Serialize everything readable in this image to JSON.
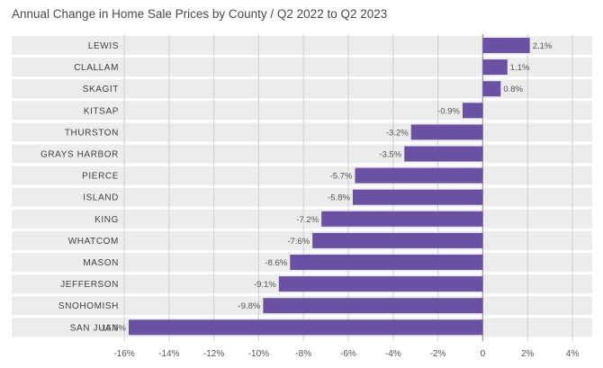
{
  "chart_data": {
    "type": "bar",
    "orientation": "horizontal",
    "title": "Annual Change in Home Sale Prices by County   /   Q2 2022 to Q2 2023",
    "xlabel": "",
    "ylabel": "",
    "categories": [
      "LEWIS",
      "CLALLAM",
      "SKAGIT",
      "KITSAP",
      "THURSTON",
      "GRAYS HARBOR",
      "PIERCE",
      "ISLAND",
      "KING",
      "WHATCOM",
      "MASON",
      "JEFFERSON",
      "SNOHOMISH",
      "SAN JUAN"
    ],
    "values": [
      2.1,
      1.1,
      0.8,
      -0.9,
      -3.2,
      -3.5,
      -5.7,
      -5.8,
      -7.2,
      -7.6,
      -8.6,
      -9.1,
      -9.8,
      -15.8
    ],
    "data_labels": [
      "2.1%",
      "1.1%",
      "0.8%",
      "-0.9%",
      "-3.2%",
      "-3.5%",
      "-5.7%",
      "-5.8%",
      "-7.2%",
      "-7.6%",
      "-8.6%",
      "-9.1%",
      "-9.8%",
      "-15.8%"
    ],
    "xlim": [
      -16,
      4
    ],
    "xticks": [
      -16,
      -14,
      -12,
      -10,
      -8,
      -6,
      -4,
      -2,
      0,
      2,
      4
    ],
    "xtick_labels": [
      "-16%",
      "-14%",
      "-12%",
      "-10%",
      "-8%",
      "-6%",
      "-4%",
      "-2%",
      "0",
      "2%",
      "4%"
    ],
    "grid": true,
    "colors": {
      "bar": "#6a51a3",
      "band": "#ececec",
      "grid": "#cfcfcf",
      "axis": "#9a9a9a",
      "text": "#4a4a4a"
    }
  }
}
